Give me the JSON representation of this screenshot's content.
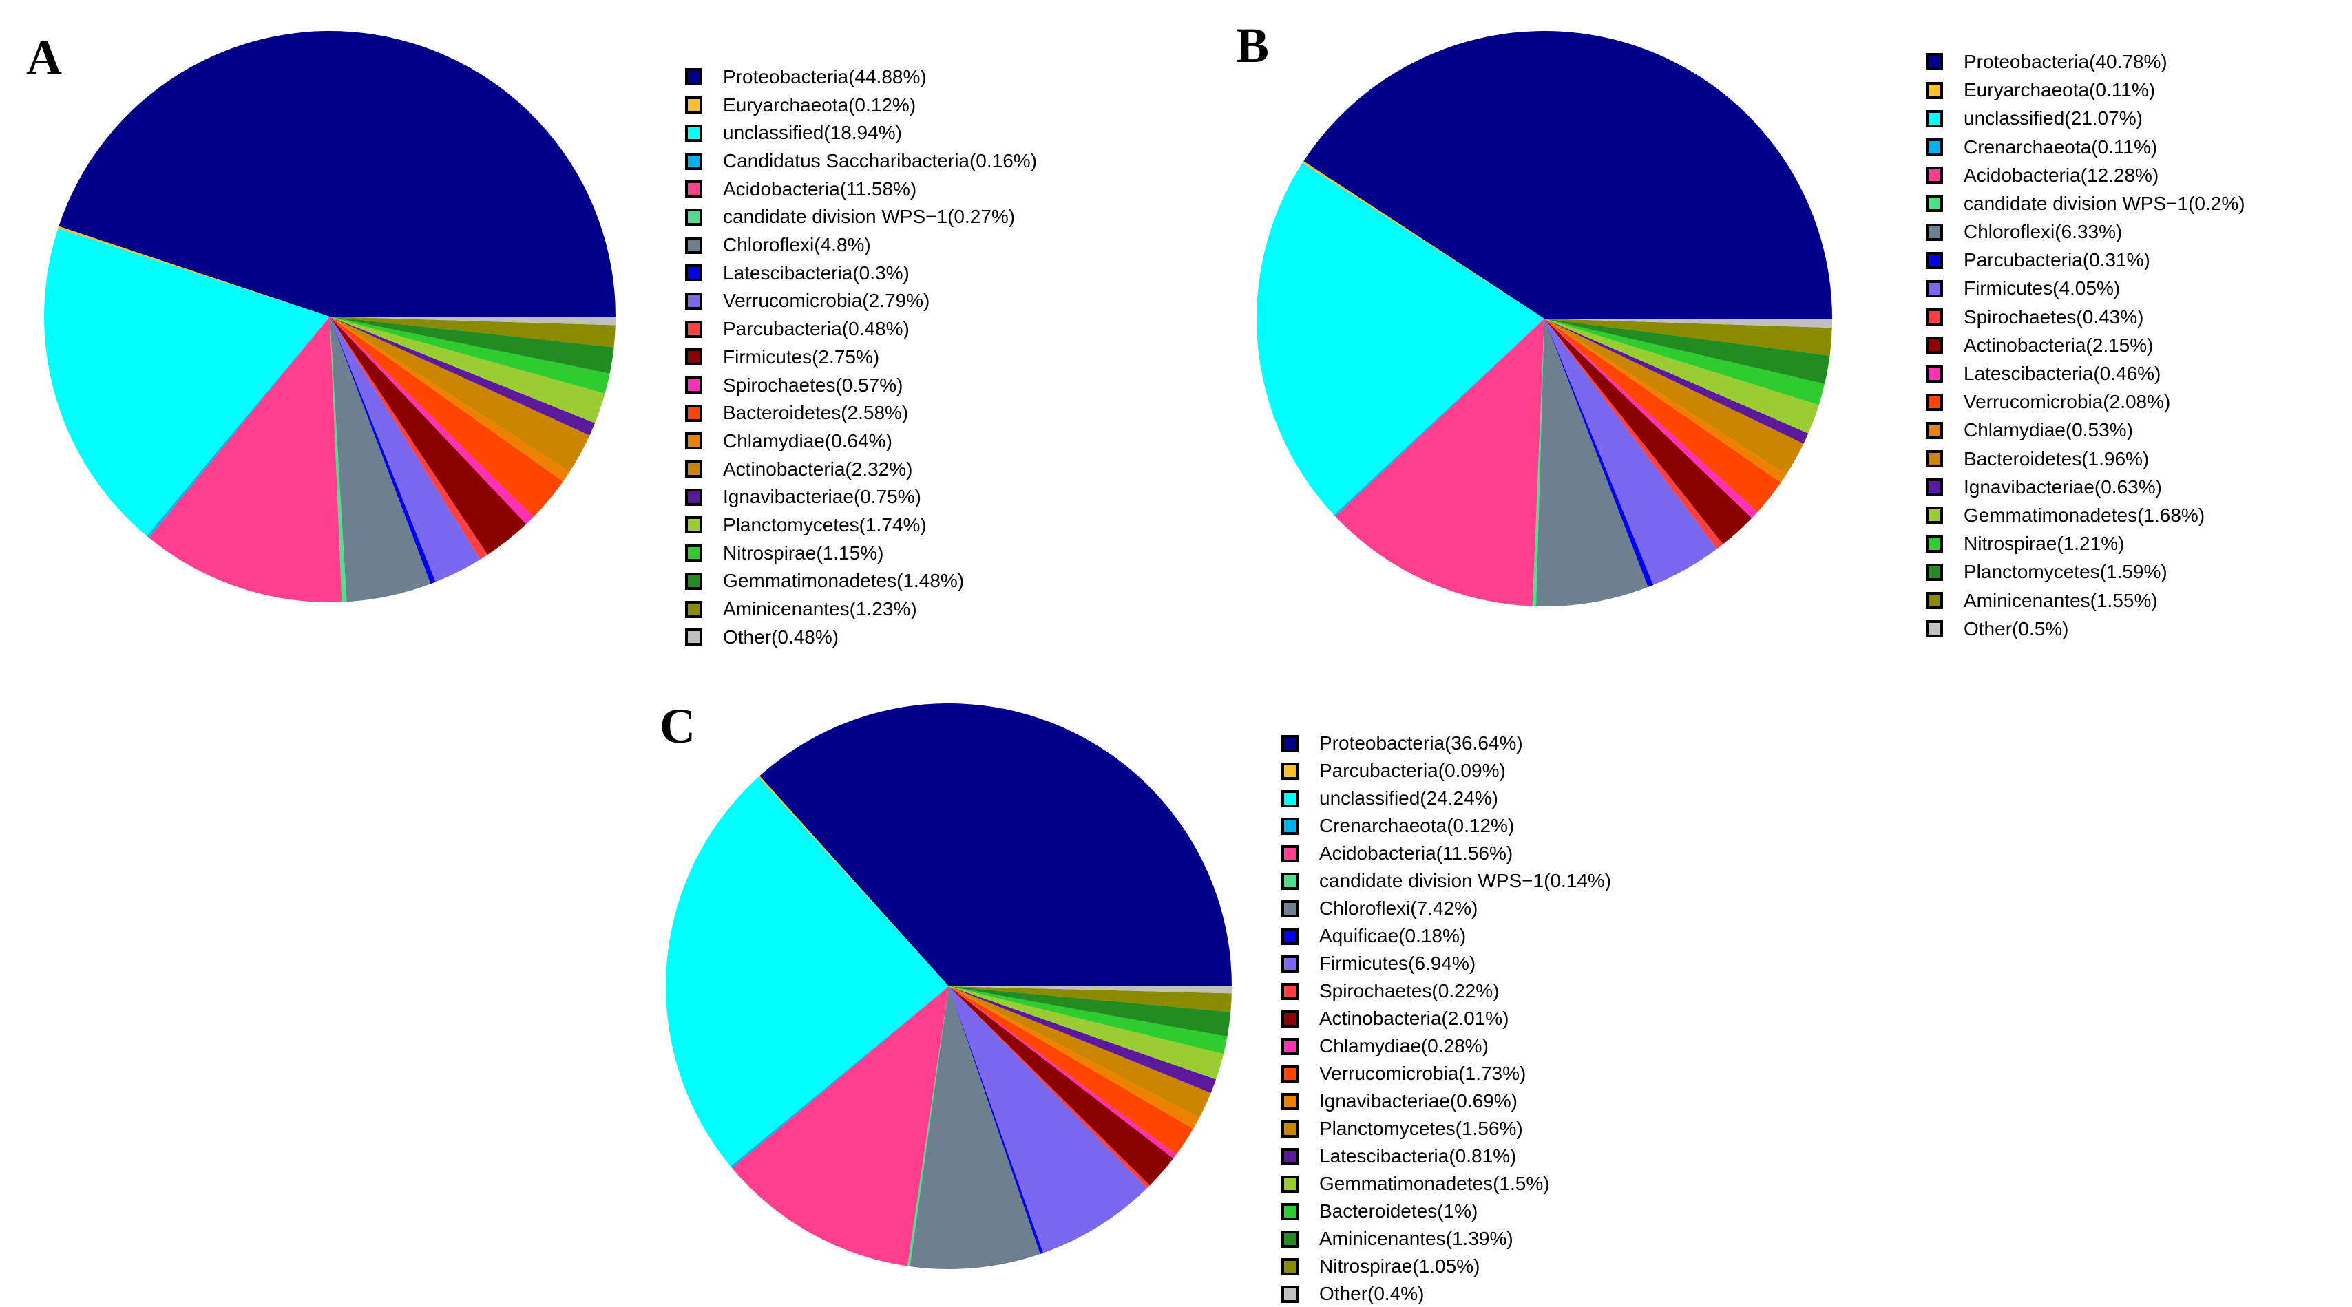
{
  "figure": {
    "background": "#ffffff",
    "text_color": "#000000",
    "swatch_border_color": "#000000"
  },
  "panels": [
    {
      "label": "A"
    },
    {
      "label": "B"
    },
    {
      "label": "C"
    }
  ],
  "palette": [
    "#00008B",
    "#FFBE2D",
    "#00FFFF",
    "#00B2EE",
    "#FF3E8E",
    "#4EE08C",
    "#6C8090",
    "#0000EE",
    "#7B68EE",
    "#FF4040",
    "#8B0000",
    "#FF30B8",
    "#FF4500",
    "#EE8000",
    "#CC8500",
    "#5B1A9B",
    "#9ACD32",
    "#2ECC2E",
    "#228B22",
    "#8B8B00",
    "#C0C0C0"
  ],
  "chart_data": [
    {
      "type": "pie",
      "panel": "A",
      "title": "",
      "legend_position": "right",
      "start_angle_deg": 0,
      "direction": "counterclockwise",
      "categories": [
        "Proteobacteria",
        "Euryarchaeota",
        "unclassified",
        "Candidatus Saccharibacteria",
        "Acidobacteria",
        "candidate division WPS-1",
        "Chloroflexi",
        "Latescibacteria",
        "Verrucomicrobia",
        "Parcubacteria",
        "Firmicutes",
        "Spirochaetes",
        "Bacteroidetes",
        "Chlamydiae",
        "Actinobacteria",
        "Ignavibacteriae",
        "Planctomycetes",
        "Nitrospirae",
        "Gemmatimonadetes",
        "Aminicenantes",
        "Other"
      ],
      "values": [
        44.88,
        0.12,
        18.94,
        0.16,
        11.58,
        0.27,
        4.8,
        0.3,
        2.79,
        0.48,
        2.75,
        0.57,
        2.58,
        0.64,
        2.32,
        0.75,
        1.74,
        1.15,
        1.48,
        1.23,
        0.48
      ],
      "colors": [
        "#00008B",
        "#FFBE2D",
        "#00FFFF",
        "#00B2EE",
        "#FF3E8E",
        "#4EE08C",
        "#6C8090",
        "#0000EE",
        "#7B68EE",
        "#FF4040",
        "#8B0000",
        "#FF30B8",
        "#FF4500",
        "#EE8000",
        "#CC8500",
        "#5B1A9B",
        "#9ACD32",
        "#2ECC2E",
        "#228B22",
        "#8B8B00",
        "#C0C0C0"
      ],
      "legend_labels": [
        "Proteobacteria(44.88%)",
        "Euryarchaeota(0.12%)",
        "unclassified(18.94%)",
        "Candidatus Saccharibacteria(0.16%)",
        "Acidobacteria(11.58%)",
        "candidate division WPS−1(0.27%)",
        "Chloroflexi(4.8%)",
        "Latescibacteria(0.3%)",
        "Verrucomicrobia(2.79%)",
        "Parcubacteria(0.48%)",
        "Firmicutes(2.75%)",
        "Spirochaetes(0.57%)",
        "Bacteroidetes(2.58%)",
        "Chlamydiae(0.64%)",
        "Actinobacteria(2.32%)",
        "Ignavibacteriae(0.75%)",
        "Planctomycetes(1.74%)",
        "Nitrospirae(1.15%)",
        "Gemmatimonadetes(1.48%)",
        "Aminicenantes(1.23%)",
        "Other(0.48%)"
      ]
    },
    {
      "type": "pie",
      "panel": "B",
      "title": "",
      "legend_position": "right",
      "start_angle_deg": 0,
      "direction": "counterclockwise",
      "categories": [
        "Proteobacteria",
        "Euryarchaeota",
        "unclassified",
        "Crenarchaeota",
        "Acidobacteria",
        "candidate division WPS-1",
        "Chloroflexi",
        "Parcubacteria",
        "Firmicutes",
        "Spirochaetes",
        "Actinobacteria",
        "Latescibacteria",
        "Verrucomicrobia",
        "Chlamydiae",
        "Bacteroidetes",
        "Ignavibacteriae",
        "Gemmatimonadetes",
        "Nitrospirae",
        "Planctomycetes",
        "Aminicenantes",
        "Other"
      ],
      "values": [
        40.78,
        0.11,
        21.07,
        0.11,
        12.28,
        0.2,
        6.33,
        0.31,
        4.05,
        0.43,
        2.15,
        0.46,
        2.08,
        0.53,
        1.96,
        0.63,
        1.68,
        1.21,
        1.59,
        1.55,
        0.5
      ],
      "colors": [
        "#00008B",
        "#FFBE2D",
        "#00FFFF",
        "#00B2EE",
        "#FF3E8E",
        "#4EE08C",
        "#6C8090",
        "#0000EE",
        "#7B68EE",
        "#FF4040",
        "#8B0000",
        "#FF30B8",
        "#FF4500",
        "#EE8000",
        "#CC8500",
        "#5B1A9B",
        "#9ACD32",
        "#2ECC2E",
        "#228B22",
        "#8B8B00",
        "#C0C0C0"
      ],
      "legend_labels": [
        "Proteobacteria(40.78%)",
        "Euryarchaeota(0.11%)",
        "unclassified(21.07%)",
        "Crenarchaeota(0.11%)",
        "Acidobacteria(12.28%)",
        "candidate division WPS−1(0.2%)",
        "Chloroflexi(6.33%)",
        "Parcubacteria(0.31%)",
        "Firmicutes(4.05%)",
        "Spirochaetes(0.43%)",
        "Actinobacteria(2.15%)",
        "Latescibacteria(0.46%)",
        "Verrucomicrobia(2.08%)",
        "Chlamydiae(0.53%)",
        "Bacteroidetes(1.96%)",
        "Ignavibacteriae(0.63%)",
        "Gemmatimonadetes(1.68%)",
        "Nitrospirae(1.21%)",
        "Planctomycetes(1.59%)",
        "Aminicenantes(1.55%)",
        "Other(0.5%)"
      ]
    },
    {
      "type": "pie",
      "panel": "C",
      "title": "",
      "legend_position": "right",
      "start_angle_deg": 0,
      "direction": "counterclockwise",
      "categories": [
        "Proteobacteria",
        "Parcubacteria",
        "unclassified",
        "Crenarchaeota",
        "Acidobacteria",
        "candidate division WPS-1",
        "Chloroflexi",
        "Aquificae",
        "Firmicutes",
        "Spirochaetes",
        "Actinobacteria",
        "Chlamydiae",
        "Verrucomicrobia",
        "Ignavibacteriae",
        "Planctomycetes",
        "Latescibacteria",
        "Gemmatimonadetes",
        "Bacteroidetes",
        "Aminicenantes",
        "Nitrospirae",
        "Other"
      ],
      "values": [
        36.64,
        0.09,
        24.24,
        0.12,
        11.56,
        0.14,
        7.42,
        0.18,
        6.94,
        0.22,
        2.01,
        0.28,
        1.73,
        0.69,
        1.56,
        0.81,
        1.5,
        1,
        1.39,
        1.05,
        0.4
      ],
      "colors": [
        "#00008B",
        "#FFBE2D",
        "#00FFFF",
        "#00B2EE",
        "#FF3E8E",
        "#4EE08C",
        "#6C8090",
        "#0000EE",
        "#7B68EE",
        "#FF4040",
        "#8B0000",
        "#FF30B8",
        "#FF4500",
        "#EE8000",
        "#CC8500",
        "#5B1A9B",
        "#9ACD32",
        "#2ECC2E",
        "#228B22",
        "#8B8B00",
        "#C0C0C0"
      ],
      "legend_labels": [
        "Proteobacteria(36.64%)",
        "Parcubacteria(0.09%)",
        "unclassified(24.24%)",
        "Crenarchaeota(0.12%)",
        "Acidobacteria(11.56%)",
        "candidate division WPS−1(0.14%)",
        "Chloroflexi(7.42%)",
        "Aquificae(0.18%)",
        "Firmicutes(6.94%)",
        "Spirochaetes(0.22%)",
        "Actinobacteria(2.01%)",
        "Chlamydiae(0.28%)",
        "Verrucomicrobia(1.73%)",
        "Ignavibacteriae(0.69%)",
        "Planctomycetes(1.56%)",
        "Latescibacteria(0.81%)",
        "Gemmatimonadetes(1.5%)",
        "Bacteroidetes(1%)",
        "Aminicenantes(1.39%)",
        "Nitrospirae(1.05%)",
        "Other(0.4%)"
      ]
    }
  ]
}
